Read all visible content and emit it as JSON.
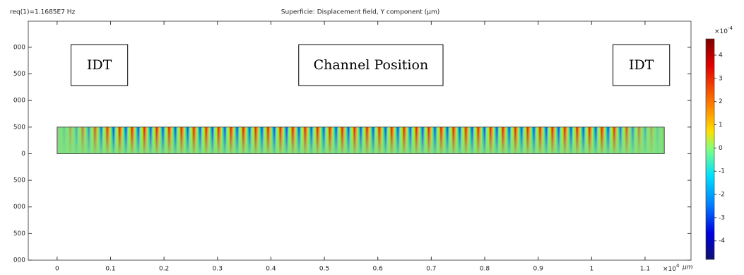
{
  "chart_data": {
    "type": "surface",
    "parameter_label": "req(1)=1.1685E7 Hz",
    "title": "Superficie: Displacement field, Y component (µm)",
    "x_unit": "µm",
    "x_multiplier": "×10",
    "x_exponent": "4",
    "xlim": [
      -0.054,
      1.186
    ],
    "xticks": [
      0,
      0.1,
      0.2,
      0.3,
      0.4,
      0.5,
      0.6,
      0.7,
      0.8,
      0.9,
      1,
      1.1
    ],
    "ylim": [
      -2000,
      2490
    ],
    "yticks": [
      {
        "value": 2000,
        "label": "000"
      },
      {
        "value": 1500,
        "label": "500"
      },
      {
        "value": 1000,
        "label": "000"
      },
      500,
      0,
      {
        "value": -500,
        "label": "500"
      },
      {
        "value": -1000,
        "label": "000"
      },
      {
        "value": -1500,
        "label": "500"
      },
      {
        "value": -2000,
        "label": "000"
      }
    ],
    "domain": {
      "x": [
        0,
        1.136
      ],
      "y": [
        0,
        500
      ]
    },
    "annotations": [
      {
        "text": "IDT",
        "x": [
          0.026,
          0.132
        ],
        "y": [
          1280,
          2050
        ]
      },
      {
        "text": "Channel Position",
        "x": [
          0.452,
          0.722
        ],
        "y": [
          1280,
          2050
        ]
      },
      {
        "text": "IDT",
        "x": [
          1.04,
          1.146
        ],
        "y": [
          1280,
          2050
        ]
      }
    ],
    "colorbar": {
      "multiplier": "×10",
      "exponent": "-4",
      "clim": [
        -4.8,
        4.7
      ],
      "ticks": [
        4,
        3,
        2,
        1,
        0,
        -1,
        -2,
        -3,
        -4
      ]
    }
  }
}
